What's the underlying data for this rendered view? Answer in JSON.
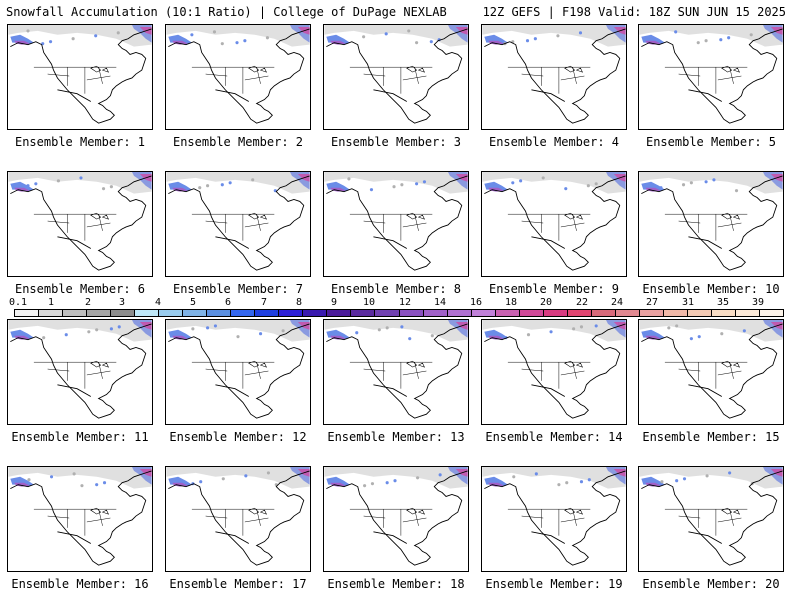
{
  "header": {
    "left_title": "Snowfall Accumulation (10:1 Ratio) | College of DuPage NEXLAB",
    "right_title": "12Z GEFS | F198 Valid: 18Z SUN JUN 15 2025"
  },
  "panels": [
    {
      "label": "Ensemble Member: 1"
    },
    {
      "label": "Ensemble Member: 2"
    },
    {
      "label": "Ensemble Member: 3"
    },
    {
      "label": "Ensemble Member: 4"
    },
    {
      "label": "Ensemble Member: 5"
    },
    {
      "label": "Ensemble Member: 6"
    },
    {
      "label": "Ensemble Member: 7"
    },
    {
      "label": "Ensemble Member: 8"
    },
    {
      "label": "Ensemble Member: 9"
    },
    {
      "label": "Ensemble Member: 10"
    },
    {
      "label": "Ensemble Member: 11"
    },
    {
      "label": "Ensemble Member: 12"
    },
    {
      "label": "Ensemble Member: 13"
    },
    {
      "label": "Ensemble Member: 14"
    },
    {
      "label": "Ensemble Member: 15"
    },
    {
      "label": "Ensemble Member: 16"
    },
    {
      "label": "Ensemble Member: 17"
    },
    {
      "label": "Ensemble Member: 18"
    },
    {
      "label": "Ensemble Member: 19"
    },
    {
      "label": "Ensemble Member: 20"
    }
  ],
  "colorbar": {
    "labels": [
      "0.1",
      "1",
      "2",
      "3",
      "4",
      "5",
      "6",
      "7",
      "8",
      "9",
      "10",
      "12",
      "14",
      "16",
      "18",
      "20",
      "22",
      "24",
      "27",
      "31",
      "35",
      "39"
    ],
    "colors": [
      "#f2f2f2",
      "#d9d9d9",
      "#bfbfbf",
      "#a6a6a6",
      "#8c8c8c",
      "#bfe8f8",
      "#99ccee",
      "#7fb3e6",
      "#5a8fe0",
      "#3366ee",
      "#1f3fe0",
      "#2c1fd6",
      "#3a1ab0",
      "#4a1a9a",
      "#5a2a9e",
      "#7040b0",
      "#8a50c0",
      "#a060c8",
      "#b070d0",
      "#c080d8",
      "#c860b0",
      "#d04898",
      "#d83a80",
      "#e04470",
      "#d86a7a",
      "#e08890",
      "#e8a0a0",
      "#f0b8a8",
      "#f4cab4",
      "#f8dcc4",
      "#fbe9d8",
      "#fdf4ea"
    ]
  }
}
